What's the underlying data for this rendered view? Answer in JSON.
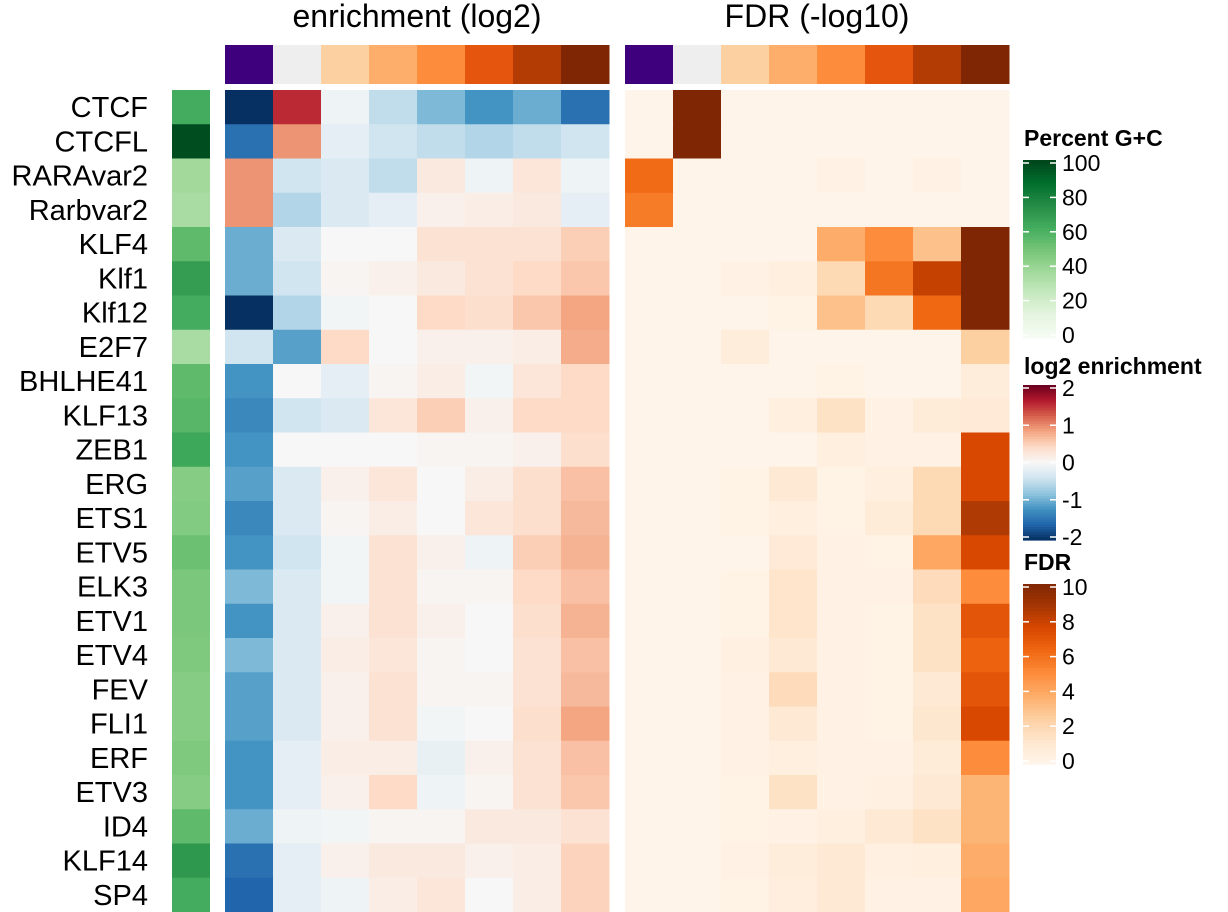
{
  "chart_data": {
    "type": "heatmap",
    "panels": [
      {
        "id": "enrichment",
        "title": "enrichment (log2)"
      },
      {
        "id": "fdr",
        "title": "FDR (-log10)"
      }
    ],
    "column_count": 8,
    "column_header_colors": [
      "#3f007d",
      "#eeeeee",
      "#fdd0a2",
      "#fdae6b",
      "#fd8d3c",
      "#e6550d",
      "#b33b04",
      "#7f2704"
    ],
    "rows": [
      "CTCF",
      "CTCFL",
      "RARAvar2",
      "Rarbvar2",
      "KLF4",
      "Klf1",
      "Klf12",
      "E2F7",
      "BHLHE41",
      "KLF13",
      "ZEB1",
      "ERG",
      "ETS1",
      "ETV5",
      "ELK3",
      "ETV1",
      "ETV4",
      "FEV",
      "FLI1",
      "ERF",
      "ETV3",
      "ID4",
      "KLF14",
      "SP4"
    ],
    "gc_percent": [
      62,
      97,
      37,
      35,
      55,
      68,
      62,
      35,
      55,
      57,
      64,
      45,
      46,
      52,
      48,
      48,
      47,
      45,
      45,
      47,
      45,
      55,
      70,
      62
    ],
    "enrichment_log2": [
      [
        -2.2,
        1.5,
        -0.1,
        -0.5,
        -0.9,
        -1.2,
        -1.0,
        -1.5
      ],
      [
        -1.5,
        0.9,
        -0.2,
        -0.4,
        -0.5,
        -0.6,
        -0.5,
        -0.4
      ],
      [
        0.9,
        -0.4,
        -0.3,
        -0.5,
        0.2,
        -0.1,
        0.25,
        -0.1
      ],
      [
        0.9,
        -0.6,
        -0.3,
        -0.2,
        0.1,
        0.15,
        0.2,
        -0.2
      ],
      [
        -1.0,
        -0.3,
        0.0,
        0.0,
        0.3,
        0.3,
        0.3,
        0.5
      ],
      [
        -1.0,
        -0.4,
        0.05,
        0.1,
        0.2,
        0.3,
        0.4,
        0.55
      ],
      [
        -2.3,
        -0.6,
        -0.05,
        0.0,
        0.4,
        0.35,
        0.55,
        0.8
      ],
      [
        -0.4,
        -1.1,
        0.4,
        0.0,
        0.1,
        0.1,
        0.15,
        0.75
      ],
      [
        -1.2,
        0.0,
        -0.2,
        0.05,
        0.15,
        -0.05,
        0.25,
        0.4
      ],
      [
        -1.3,
        -0.4,
        -0.3,
        0.25,
        0.5,
        0.1,
        0.4,
        0.4
      ],
      [
        -1.2,
        0.0,
        0.0,
        0.0,
        0.05,
        0.05,
        0.1,
        0.35
      ],
      [
        -1.1,
        -0.3,
        0.1,
        0.25,
        0.0,
        0.15,
        0.35,
        0.6
      ],
      [
        -1.3,
        -0.3,
        0.05,
        0.15,
        0.0,
        0.25,
        0.35,
        0.65
      ],
      [
        -1.2,
        -0.4,
        -0.05,
        0.3,
        0.1,
        -0.1,
        0.5,
        0.7
      ],
      [
        -0.9,
        -0.3,
        -0.05,
        0.3,
        0.05,
        0.05,
        0.4,
        0.6
      ],
      [
        -1.2,
        -0.3,
        0.1,
        0.3,
        0.1,
        0.0,
        0.35,
        0.7
      ],
      [
        -0.9,
        -0.3,
        0.15,
        0.25,
        0.05,
        0.0,
        0.3,
        0.6
      ],
      [
        -1.1,
        -0.3,
        0.1,
        0.3,
        0.05,
        0.05,
        0.3,
        0.65
      ],
      [
        -1.1,
        -0.3,
        0.1,
        0.3,
        -0.05,
        0.0,
        0.35,
        0.8
      ],
      [
        -1.2,
        -0.2,
        0.15,
        0.15,
        -0.15,
        0.1,
        0.3,
        0.6
      ],
      [
        -1.2,
        -0.2,
        0.1,
        0.4,
        -0.1,
        0.05,
        0.3,
        0.55
      ],
      [
        -1.0,
        -0.1,
        -0.05,
        0.05,
        0.05,
        0.2,
        0.2,
        0.3
      ],
      [
        -1.5,
        -0.2,
        0.1,
        0.2,
        0.2,
        0.1,
        0.15,
        0.45
      ],
      [
        -1.6,
        -0.2,
        -0.1,
        0.15,
        0.25,
        0.0,
        0.15,
        0.45
      ]
    ],
    "fdr_neglog10": [
      [
        0.1,
        10.2,
        0.05,
        0.05,
        0.05,
        0.05,
        0.05,
        0.05
      ],
      [
        0.1,
        10.2,
        0.05,
        0.05,
        0.05,
        0.05,
        0.05,
        0.05
      ],
      [
        6.2,
        0.05,
        0.05,
        0.05,
        0.3,
        0.05,
        0.3,
        0.1
      ],
      [
        5.6,
        0.05,
        0.05,
        0.05,
        0.1,
        0.05,
        0.1,
        0.1
      ],
      [
        0.05,
        0.05,
        0.05,
        0.1,
        3.8,
        5.0,
        3.0,
        10.0
      ],
      [
        0.05,
        0.05,
        0.3,
        0.5,
        2.0,
        5.8,
        8.0,
        10.0
      ],
      [
        0.05,
        0.05,
        0.1,
        0.2,
        3.0,
        2.0,
        6.3,
        10.0
      ],
      [
        0.05,
        0.05,
        0.7,
        0.1,
        0.1,
        0.1,
        0.1,
        2.5
      ],
      [
        0.05,
        0.1,
        0.1,
        0.1,
        0.2,
        0.1,
        0.1,
        0.7
      ],
      [
        0.05,
        0.05,
        0.05,
        0.5,
        1.5,
        0.3,
        0.8,
        0.9
      ],
      [
        0.05,
        0.05,
        0.05,
        0.1,
        0.5,
        0.3,
        0.3,
        7.5
      ],
      [
        0.05,
        0.05,
        0.2,
        1.0,
        0.2,
        0.5,
        2.0,
        7.5
      ],
      [
        0.05,
        0.05,
        0.2,
        0.5,
        0.2,
        0.8,
        2.0,
        8.5
      ],
      [
        0.05,
        0.05,
        0.1,
        0.9,
        0.3,
        0.2,
        4.0,
        7.5
      ],
      [
        0.05,
        0.05,
        0.2,
        1.3,
        0.3,
        0.3,
        1.8,
        5.0
      ],
      [
        0.05,
        0.05,
        0.2,
        1.3,
        0.3,
        0.2,
        1.5,
        7.0
      ],
      [
        0.05,
        0.05,
        0.4,
        1.0,
        0.3,
        0.2,
        1.5,
        6.5
      ],
      [
        0.05,
        0.05,
        0.3,
        1.8,
        0.3,
        0.2,
        1.0,
        7.0
      ],
      [
        0.05,
        0.05,
        0.3,
        1.0,
        0.3,
        0.2,
        1.2,
        7.5
      ],
      [
        0.05,
        0.05,
        0.3,
        0.5,
        0.3,
        0.3,
        0.8,
        5.0
      ],
      [
        0.05,
        0.05,
        0.2,
        1.5,
        0.3,
        0.4,
        1.0,
        3.5
      ],
      [
        0.05,
        0.05,
        0.2,
        0.3,
        0.5,
        1.0,
        1.5,
        3.5
      ],
      [
        0.05,
        0.05,
        0.3,
        0.7,
        1.0,
        0.4,
        0.5,
        3.8
      ],
      [
        0.05,
        0.05,
        0.2,
        0.6,
        1.0,
        0.3,
        0.3,
        4.0
      ]
    ],
    "legends": [
      {
        "id": "gc",
        "title": "Percent G+C",
        "ticks": [
          "100",
          "80",
          "60",
          "40",
          "20",
          "0"
        ],
        "range": [
          0,
          100
        ],
        "palette": "greens"
      },
      {
        "id": "enrichment",
        "title": "log2 enrichment",
        "ticks": [
          "2",
          "1",
          "0",
          "-1",
          "-2"
        ],
        "range": [
          -2,
          2
        ],
        "palette": "blue-white-red"
      },
      {
        "id": "fdr",
        "title": "FDR",
        "ticks": [
          "10",
          "8",
          "6",
          "4",
          "2",
          "0"
        ],
        "range": [
          0,
          10
        ],
        "palette": "oranges"
      }
    ],
    "colors": {
      "greens": [
        "#f7fcf5",
        "#e5f5e0",
        "#c7e9c0",
        "#a1d99b",
        "#74c476",
        "#41ab5d",
        "#238b45",
        "#006d2c",
        "#00441b"
      ],
      "diverging": [
        "#053061",
        "#2166ac",
        "#4393c3",
        "#92c5de",
        "#d1e5f0",
        "#f7f7f7",
        "#fddbc7",
        "#f4a582",
        "#d6604d",
        "#b2182b",
        "#67001f"
      ],
      "oranges": [
        "#fff5eb",
        "#fee6ce",
        "#fdd0a2",
        "#fdae6b",
        "#fd8d3c",
        "#f16913",
        "#d94801",
        "#a63603",
        "#7f2704"
      ]
    },
    "grid": false
  }
}
